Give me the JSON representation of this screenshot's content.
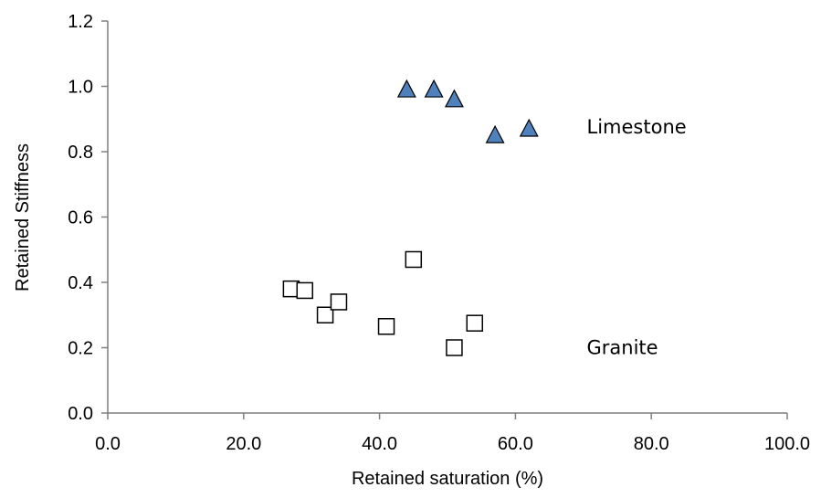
{
  "chart_data": {
    "type": "scatter",
    "title": "",
    "xlabel": "Retained saturation (%)",
    "ylabel": "Retained Stiffness",
    "xlim": [
      0,
      100
    ],
    "ylim": [
      0,
      1.2
    ],
    "x_ticks": [
      {
        "value": 0,
        "label": "0.0"
      },
      {
        "value": 20,
        "label": "20.0"
      },
      {
        "value": 40,
        "label": "40.0"
      },
      {
        "value": 60,
        "label": "60.0"
      },
      {
        "value": 80,
        "label": "80.0"
      },
      {
        "value": 100,
        "label": "100.0"
      }
    ],
    "y_ticks": [
      {
        "value": 0,
        "label": "0.0"
      },
      {
        "value": 0.2,
        "label": "0.2"
      },
      {
        "value": 0.4,
        "label": "0.4"
      },
      {
        "value": 0.6,
        "label": "0.6"
      },
      {
        "value": 0.8,
        "label": "0.8"
      },
      {
        "value": 1.0,
        "label": "1.0"
      },
      {
        "value": 1.2,
        "label": "1.2"
      }
    ],
    "grid": false,
    "legend": "none",
    "series": [
      {
        "marker": "triangle",
        "color": "#4f81bd",
        "points": [
          {
            "x": 44,
            "y": 0.99
          },
          {
            "x": 48,
            "y": 0.99
          },
          {
            "x": 51,
            "y": 0.96
          },
          {
            "x": 57,
            "y": 0.85
          },
          {
            "x": 62,
            "y": 0.87
          }
        ]
      },
      {
        "marker": "square-open",
        "color": "#000000",
        "points": [
          {
            "x": 27,
            "y": 0.38
          },
          {
            "x": 29,
            "y": 0.375
          },
          {
            "x": 32,
            "y": 0.3
          },
          {
            "x": 34,
            "y": 0.34
          },
          {
            "x": 41,
            "y": 0.265
          },
          {
            "x": 45,
            "y": 0.47
          },
          {
            "x": 51,
            "y": 0.2
          },
          {
            "x": 54,
            "y": 0.275
          }
        ]
      }
    ],
    "annotations": [
      {
        "text": "Limestone",
        "x": 70.5,
        "y": 0.875
      },
      {
        "text": "Granite",
        "x": 70.5,
        "y": 0.2
      }
    ]
  }
}
